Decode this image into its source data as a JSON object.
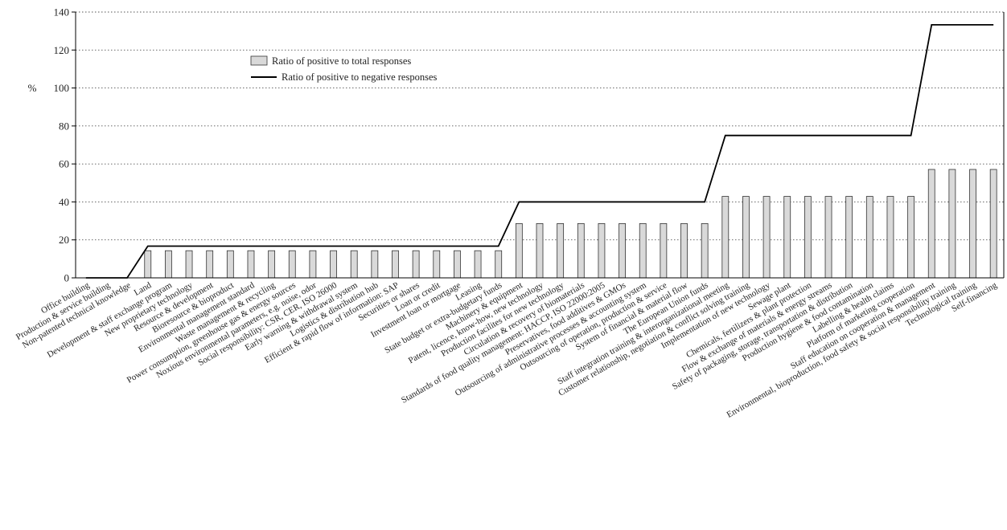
{
  "chart_data": {
    "type": "bar",
    "ylabel": "%",
    "ylim": [
      0,
      140
    ],
    "yticks": [
      0,
      20,
      40,
      60,
      80,
      100,
      120,
      140
    ],
    "grid": "horizontal dotted",
    "legend_position": "top-left",
    "categories": [
      "Office building",
      "Production & service building",
      "Non-patented technical knowledge",
      "Land",
      "Development & staff exchange program",
      "New proprietary technology",
      "Resource & development",
      "Bioresource & bioproduct",
      "Environmental management standard",
      "Waste management & recycling",
      "Power consumption, greenhouse gas & energy sources",
      "Noxious environmental parameters, e.g. noise, odor",
      "Social responsibility: CSR, CER, ISO 26000",
      "Early warning & withdrawal system",
      "Logistics & distribution hub",
      "Efficient & rapid flow of information: SAP",
      "Securities or shares",
      "Loan or credit",
      "Investment loan or mortgage",
      "Leasing",
      "State budget or extra-budgetary funds",
      "Machinery & equipment",
      "Patent, licence, know-how, new technology",
      "Production facilites for new technology",
      "Circulation & recovery of biomaterials",
      "Standards of food quality management: HACCP, ISO 22000:2005",
      "Preservatives, food additives & GMOs",
      "Outsourcing of administrative processes & accounting system",
      "Outsourcing of operation, production & service",
      "System of financial & material flow",
      "The European Union funds",
      "Staff integration training & interorganizational meeting",
      "Customer relationship, negotiation & conflict solving training",
      "Implementation of new technology",
      "Sewage plant",
      "Chemicals, fertilizers & plant protection",
      "Flow & exchange of materials & energy streams",
      "Safety of packaging, storage, transportation & distribution",
      "Production hygiene & food contamination",
      "Labelling & health claims",
      "Platform of marketing cooperation",
      "Staff education on cooperation & management",
      "Environmental, bioproduction, food safety & social responsibility training",
      "Technological training",
      "Self-financing"
    ],
    "series": [
      {
        "name": "Ratio of positive to total responses",
        "type": "bar",
        "color": "#d9d9d9",
        "values": [
          0,
          0,
          0,
          14.3,
          14.3,
          14.3,
          14.3,
          14.3,
          14.3,
          14.3,
          14.3,
          14.3,
          14.3,
          14.3,
          14.3,
          14.3,
          14.3,
          14.3,
          14.3,
          14.3,
          14.3,
          28.6,
          28.6,
          28.6,
          28.6,
          28.6,
          28.6,
          28.6,
          28.6,
          28.6,
          28.6,
          42.9,
          42.9,
          42.9,
          42.9,
          42.9,
          42.9,
          42.9,
          42.9,
          42.9,
          42.9,
          57.1,
          57.1,
          57.1,
          57.1
        ]
      },
      {
        "name": "Ratio of positive to negative responses",
        "type": "line",
        "color": "#000000",
        "values": [
          0,
          0,
          0,
          16.7,
          16.7,
          16.7,
          16.7,
          16.7,
          16.7,
          16.7,
          16.7,
          16.7,
          16.7,
          16.7,
          16.7,
          16.7,
          16.7,
          16.7,
          16.7,
          16.7,
          16.7,
          40,
          40,
          40,
          40,
          40,
          40,
          40,
          40,
          40,
          40,
          75,
          75,
          75,
          75,
          75,
          75,
          75,
          75,
          75,
          75,
          133.3,
          133.3,
          133.3,
          133.3
        ]
      }
    ]
  }
}
